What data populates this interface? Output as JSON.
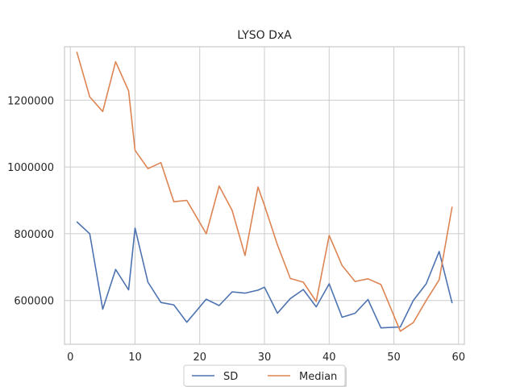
{
  "chart_data": {
    "type": "line",
    "title": "LYSO DxA",
    "xlabel": "",
    "ylabel": "",
    "xlim": [
      -0.9,
      60.9
    ],
    "ylim": [
      469000,
      1360000
    ],
    "xticks": [
      0,
      10,
      20,
      30,
      40,
      50,
      60
    ],
    "yticks": [
      600000,
      800000,
      1000000,
      1200000
    ],
    "grid": true,
    "legend": {
      "placement": "bottom-center-outside",
      "columns": 2
    },
    "series": [
      {
        "name": "SD",
        "color": "#4c72b0",
        "x": [
          1,
          3,
          5,
          7,
          9,
          10,
          12,
          14,
          16,
          18,
          21,
          23,
          25,
          27,
          29,
          30,
          32,
          34,
          36,
          38,
          40,
          42,
          44,
          46,
          48,
          51,
          53,
          55,
          57,
          59
        ],
        "y": [
          836000,
          800000,
          574000,
          693000,
          632000,
          817000,
          655000,
          594000,
          587000,
          535000,
          604000,
          585000,
          626000,
          622000,
          631000,
          640000,
          562000,
          606000,
          633000,
          581000,
          650000,
          550000,
          562000,
          603000,
          518000,
          521000,
          600000,
          650000,
          747000,
          592000
        ]
      },
      {
        "name": "Median",
        "color": "#dd8452",
        "x": [
          1,
          3,
          5,
          7,
          9,
          10,
          12,
          14,
          16,
          18,
          21,
          23,
          25,
          27,
          29,
          30,
          32,
          34,
          36,
          38,
          40,
          42,
          44,
          46,
          48,
          51,
          53,
          55,
          57,
          59
        ],
        "y": [
          1345000,
          1210000,
          1166000,
          1315000,
          1228000,
          1050000,
          995000,
          1013000,
          896000,
          900000,
          800000,
          943000,
          870000,
          735000,
          940000,
          885000,
          767000,
          666000,
          655000,
          597000,
          795000,
          705000,
          657000,
          665000,
          648000,
          508000,
          534000,
          600000,
          662000,
          881000
        ]
      }
    ]
  }
}
